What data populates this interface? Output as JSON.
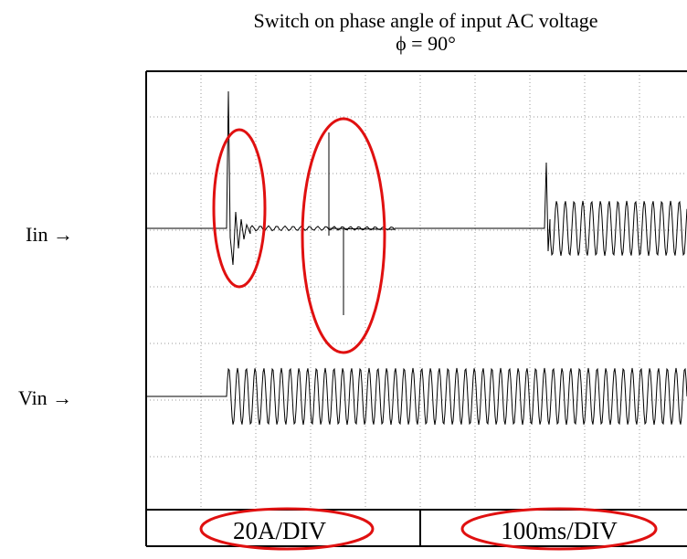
{
  "title": "Switch on phase angle of input AC voltage",
  "subtitle": "ϕ = 90°",
  "labels": {
    "iin": "Iin →",
    "vin": "Vin →"
  },
  "footer": [
    "20A/DIV",
    "100ms/DIV"
  ]
}
